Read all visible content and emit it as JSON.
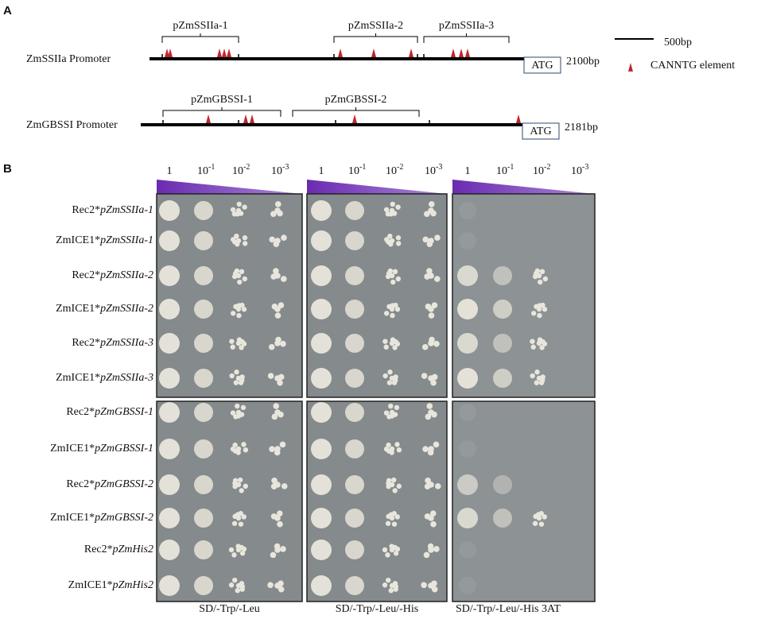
{
  "panel_a": {
    "label": "A",
    "promoters": [
      {
        "name": "ZmSSIIa Promoter",
        "fragments": [
          "pZmSSIIa-1",
          "pZmSSIIa-2",
          "pZmSSIIa-3"
        ],
        "start": "ATG",
        "length": "2100bp"
      },
      {
        "name": "ZmGBSSI Promoter",
        "fragments": [
          "pZmGBSSI-1",
          "pZmGBSSI-2"
        ],
        "start": "ATG",
        "length": "2181bp"
      }
    ],
    "legend": {
      "scale": "500bp",
      "element": "CANNTG element"
    }
  },
  "panel_b": {
    "label": "B",
    "dilutions": [
      "1",
      {
        "base": "10",
        "exp": "-1"
      },
      {
        "base": "10",
        "exp": "-2"
      },
      {
        "base": "10",
        "exp": "-3"
      }
    ],
    "rows": [
      {
        "strain": "Rec2*",
        "bait": "pZmSSIIa-1"
      },
      {
        "strain": "ZmICE1*",
        "bait": "pZmSSIIa-1"
      },
      {
        "strain": "Rec2*",
        "bait": "pZmSSIIa-2"
      },
      {
        "strain": "ZmICE1*",
        "bait": "pZmSSIIa-2"
      },
      {
        "strain": "Rec2*",
        "bait": "pZmSSIIa-3"
      },
      {
        "strain": "ZmICE1*",
        "bait": "pZmSSIIa-3"
      },
      {
        "strain": "Rec2*",
        "bait": "pZmGBSSI-1"
      },
      {
        "strain": "ZmICE1*",
        "bait": "pZmGBSSI-1"
      },
      {
        "strain": "Rec2*",
        "bait": "pZmGBSSI-2"
      },
      {
        "strain": "ZmICE1*",
        "bait": "pZmGBSSI-2"
      },
      {
        "strain": "Rec2*",
        "bait": "pZmHis2"
      },
      {
        "strain": "ZmICE1*",
        "bait": "pZmHis2"
      }
    ],
    "media": [
      "SD/-Trp/-Leu",
      "SD/-Trp/-Leu/-His",
      "SD/-Trp/-Leu/-His  3AT"
    ]
  }
}
